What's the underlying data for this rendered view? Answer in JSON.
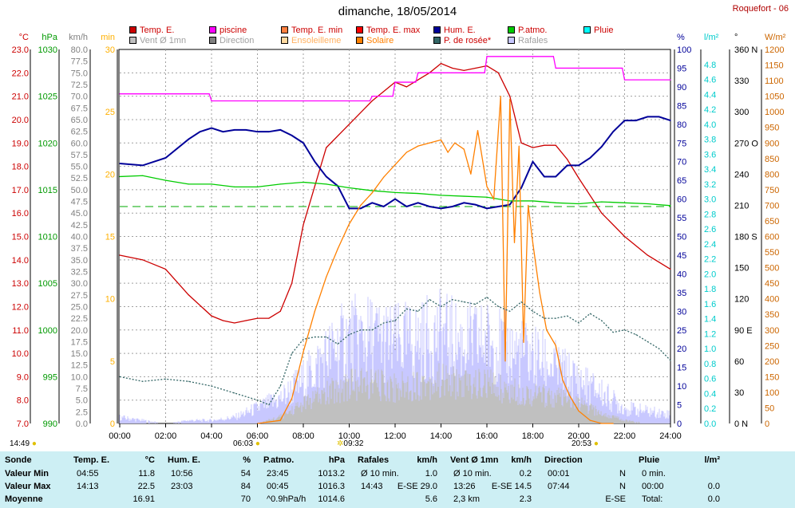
{
  "title": "dimanche, 18/05/2014",
  "station": "Roquefort - 06",
  "legend": [
    {
      "label": "Temp. E.",
      "color": "#cc0000"
    },
    {
      "label": "piscine",
      "color": "#ff00ff"
    },
    {
      "label": "Temp. E. min",
      "color": "#ff8040"
    },
    {
      "label": "Temp. E. max",
      "color": "#ff0000"
    },
    {
      "label": "Hum. E.",
      "color": "#000099"
    },
    {
      "label": "P.atmo.",
      "color": "#00cc00"
    },
    {
      "label": "Pluie",
      "color": "#00ffff"
    },
    {
      "label": "Vent Ø 1mn",
      "color": "#c0c0c0"
    },
    {
      "label": "Direction",
      "color": "#808080"
    },
    {
      "label": "Ensoleilleme",
      "color": "#ffd9a0"
    },
    {
      "label": "Solaire",
      "color": "#ff8000"
    },
    {
      "label": "P. de rosée*",
      "color": "#336666"
    },
    {
      "label": "Rafales",
      "color": "#c8c8ff"
    }
  ],
  "axis_units": {
    "temp": "°C",
    "press": "hPa",
    "wind": "km/h",
    "min": "min",
    "hum": "%",
    "rain": "l/m²",
    "dir": "°",
    "solar": "W/m²"
  },
  "markers": {
    "left_time": "14:49",
    "sunrise": "06:03",
    "sunmax": "09:32",
    "sunset": "20:53"
  },
  "chart_data": {
    "type": "line",
    "x_ticks": [
      "00:00",
      "02:00",
      "04:00",
      "06:00",
      "08:00",
      "10:00",
      "12:00",
      "14:00",
      "16:00",
      "18:00",
      "20:00",
      "22:00",
      "24:00"
    ],
    "axes": {
      "temp": {
        "range": [
          7.0,
          23.0
        ],
        "ticks": [
          "23.0",
          "22.0",
          "21.0",
          "20.0",
          "19.0",
          "18.0",
          "17.0",
          "16.0",
          "15.0",
          "14.0",
          "13.0",
          "12.0",
          "11.0",
          "10.0",
          "9.0",
          "8.0",
          "7.0"
        ],
        "color": "#cc0000"
      },
      "press": {
        "range": [
          990,
          1030
        ],
        "ticks": [
          "1030",
          "1025",
          "1020",
          "1015",
          "1010",
          "1005",
          "1000",
          "995",
          "990"
        ],
        "color": "#009900"
      },
      "wind": {
        "range": [
          0,
          80
        ],
        "ticks": [
          "80.0",
          "77.5",
          "75.0",
          "72.5",
          "70.0",
          "67.5",
          "65.0",
          "62.5",
          "60.0",
          "57.5",
          "55.0",
          "52.5",
          "50.0",
          "47.5",
          "45.0",
          "42.5",
          "40.0",
          "37.5",
          "35.0",
          "32.5",
          "30.0",
          "27.5",
          "25.0",
          "22.5",
          "20.0",
          "17.5",
          "15.0",
          "12.5",
          "10.0",
          "7.5",
          "5.0",
          "2.5",
          "0.0"
        ],
        "color": "#808080"
      },
      "min": {
        "range": [
          0,
          30
        ],
        "ticks": [
          "30",
          "25",
          "20",
          "15",
          "10",
          "5",
          "0"
        ],
        "color": "#ffb000"
      },
      "hum": {
        "range": [
          0,
          100
        ],
        "ticks": [
          "100",
          "95",
          "90",
          "85",
          "80",
          "75",
          "70",
          "65",
          "60",
          "55",
          "50",
          "45",
          "40",
          "35",
          "30",
          "25",
          "20",
          "15",
          "10",
          "5",
          "0"
        ],
        "color": "#000099"
      },
      "rain": {
        "range": [
          0,
          5
        ],
        "ticks": [
          "4.8",
          "4.6",
          "4.4",
          "4.2",
          "4.0",
          "3.8",
          "3.6",
          "3.4",
          "3.2",
          "3.0",
          "2.8",
          "2.6",
          "2.4",
          "2.2",
          "2.0",
          "1.8",
          "1.6",
          "1.4",
          "1.2",
          "1.0",
          "0.8",
          "0.6",
          "0.4",
          "0.2",
          "0.0"
        ],
        "color": "#00cccc"
      },
      "dir": {
        "range": [
          0,
          360
        ],
        "ticks": [
          "360 N",
          "330",
          "300",
          "270 O",
          "240",
          "210",
          "180 S",
          "150",
          "120",
          "90 E",
          "60",
          "30",
          "0 N"
        ],
        "color": "#000000"
      },
      "solar": {
        "range": [
          0,
          1200
        ],
        "ticks": [
          "1200",
          "1150",
          "1100",
          "1050",
          "1000",
          "950",
          "900",
          "850",
          "800",
          "750",
          "700",
          "650",
          "600",
          "550",
          "500",
          "450",
          "400",
          "350",
          "300",
          "250",
          "200",
          "150",
          "100",
          "50",
          "0"
        ],
        "color": "#cc6600"
      }
    },
    "series": [
      {
        "name": "Temp. E.",
        "axis": "temp",
        "color": "#cc0000",
        "x": [
          0,
          1,
          2,
          3,
          4,
          4.5,
          5,
          5.5,
          6,
          6.5,
          7,
          7.5,
          8,
          9,
          10,
          11,
          12,
          12.5,
          13,
          13.5,
          14,
          14.5,
          15,
          15.5,
          16,
          16.5,
          17,
          17.5,
          18,
          18.5,
          19,
          19.5,
          20,
          21,
          22,
          23,
          24
        ],
        "y": [
          14.2,
          14.0,
          13.6,
          12.5,
          11.6,
          11.4,
          11.3,
          11.4,
          11.5,
          11.5,
          11.8,
          13.0,
          15.5,
          18.8,
          19.8,
          20.8,
          21.6,
          21.4,
          21.7,
          22.0,
          22.4,
          22.2,
          22.1,
          22.2,
          22.3,
          22.0,
          21.0,
          19.0,
          18.8,
          18.9,
          18.9,
          18.3,
          17.5,
          16.0,
          15.0,
          14.2,
          13.6
        ]
      },
      {
        "name": "piscine",
        "axis": "temp",
        "color": "#ff00ff",
        "x": [
          0,
          3.9,
          4,
          10.9,
          11,
          11.9,
          12,
          12.9,
          13,
          13.9,
          14,
          15.9,
          16,
          18.9,
          19,
          21.9,
          22,
          24
        ],
        "y": [
          21.1,
          21.1,
          20.8,
          20.8,
          21.0,
          21.0,
          21.6,
          21.6,
          22.0,
          22.0,
          22.0,
          22.0,
          22.7,
          22.7,
          22.2,
          22.2,
          21.7,
          21.7
        ]
      },
      {
        "name": "Hum. E.",
        "axis": "hum",
        "color": "#000099",
        "x": [
          0,
          1,
          2,
          3,
          3.5,
          4,
          4.5,
          5,
          5.5,
          6,
          6.5,
          7,
          7.5,
          8,
          8.5,
          9,
          9.5,
          10,
          10.5,
          11,
          11.5,
          12,
          12.5,
          13,
          13.5,
          14,
          14.5,
          15,
          15.5,
          16,
          16.5,
          17,
          17.5,
          18,
          18.5,
          19,
          19.5,
          20,
          20.5,
          21,
          21.5,
          22,
          22.5,
          23,
          23.5,
          24
        ],
        "y": [
          69.5,
          69,
          71,
          76,
          78,
          79,
          78,
          78.5,
          78.5,
          78,
          78,
          78.5,
          77,
          75,
          70,
          66,
          63.5,
          57.5,
          57.5,
          59,
          58,
          60,
          58,
          59,
          58,
          57.5,
          58,
          59,
          58.5,
          57.5,
          58,
          58.5,
          63,
          70,
          66,
          66,
          69,
          69,
          71,
          74,
          78,
          81,
          81,
          82,
          82,
          81
        ]
      },
      {
        "name": "P.atmo.",
        "axis": "press",
        "color": "#00cc00",
        "x": [
          0,
          1,
          2,
          3,
          4,
          5,
          6,
          7,
          8,
          9,
          10,
          11,
          12,
          13,
          14,
          15,
          16,
          17,
          18,
          19,
          20,
          21,
          22,
          23,
          24
        ],
        "y": [
          1016.4,
          1016.5,
          1016.0,
          1015.6,
          1015.6,
          1015.3,
          1015.3,
          1015.6,
          1015.8,
          1015.6,
          1015.2,
          1014.9,
          1014.7,
          1014.6,
          1014.4,
          1014.3,
          1014.2,
          1013.8,
          1013.8,
          1013.6,
          1013.5,
          1013.7,
          1013.6,
          1013.5,
          1013.3
        ]
      },
      {
        "name": "Solaire",
        "axis": "solar",
        "color": "#ff8000",
        "x": [
          6,
          7,
          7.5,
          8,
          8.5,
          9,
          9.5,
          10,
          10.5,
          11,
          11.5,
          12,
          12.5,
          13,
          13.5,
          14,
          14.3,
          14.6,
          15,
          15.3,
          15.6,
          16,
          16.3,
          16.6,
          16.8,
          17,
          17.2,
          17.4,
          17.6,
          17.8,
          18,
          18.3,
          18.6,
          19,
          19.3,
          19.6,
          20,
          20.5,
          21,
          21.5
        ],
        "y": [
          0,
          10,
          80,
          230,
          360,
          470,
          560,
          640,
          700,
          740,
          790,
          830,
          870,
          890,
          900,
          910,
          870,
          900,
          880,
          800,
          940,
          760,
          720,
          1050,
          200,
          1040,
          580,
          890,
          260,
          700,
          580,
          420,
          300,
          250,
          140,
          90,
          40,
          10,
          0,
          0
        ]
      },
      {
        "name": "P. de rosée*",
        "axis": "temp",
        "color": "#336666",
        "x": [
          0,
          1,
          2,
          3,
          4,
          5,
          6,
          6.5,
          7,
          7.5,
          8,
          8.5,
          9,
          9.5,
          10,
          10.5,
          11,
          11.5,
          12,
          12.5,
          13,
          13.5,
          14,
          14.5,
          15,
          15.5,
          16,
          16.5,
          17,
          17.5,
          18,
          18.5,
          19,
          19.5,
          20,
          20.5,
          21,
          21.5,
          22,
          22.5,
          23,
          23.5,
          24
        ],
        "y": [
          9.0,
          8.8,
          8.9,
          8.8,
          8.6,
          8.3,
          8.0,
          7.8,
          8.6,
          10.0,
          10.6,
          10.7,
          10.7,
          10.4,
          10.8,
          11.0,
          11.0,
          11.3,
          11.4,
          11.9,
          11.8,
          12.3,
          12.0,
          12.3,
          12.2,
          12.1,
          12.4,
          12.0,
          11.8,
          12.2,
          11.8,
          11.5,
          11.5,
          11.6,
          11.3,
          11.7,
          11.4,
          10.9,
          11.0,
          10.8,
          10.5,
          10.2,
          9.7
        ]
      },
      {
        "name": "Rafales",
        "axis": "wind",
        "color": "#c8c8ff",
        "x": [
          0,
          1,
          2,
          3,
          4,
          5,
          6,
          7,
          8,
          9,
          10,
          11,
          12,
          13,
          14,
          15,
          16,
          17,
          18,
          19,
          20,
          21,
          22,
          23,
          24
        ],
        "y": [
          2,
          1,
          0,
          1,
          1,
          2,
          5,
          8,
          14,
          22,
          28,
          28,
          26,
          27,
          29,
          26,
          27,
          24,
          22,
          18,
          14,
          10,
          5,
          4,
          3
        ]
      },
      {
        "name": "Vent Ø 1mn",
        "axis": "wind",
        "color": "#c0c0c0",
        "x": [
          0,
          2,
          4,
          6,
          7,
          8,
          9,
          10,
          11,
          12,
          13,
          14,
          15,
          16,
          17,
          18,
          19,
          20,
          21,
          22,
          23,
          24
        ],
        "y": [
          0,
          0,
          0,
          0,
          2,
          6,
          9,
          12,
          12,
          11,
          12,
          13,
          12,
          12,
          10,
          9,
          8,
          6,
          3,
          1,
          0,
          0
        ]
      }
    ],
    "sunshine_min": {
      "axis": "min",
      "color": "#ffd9a0",
      "x": [
        7.8,
        17.0,
        17.2,
        17.5,
        17.7,
        19.8
      ],
      "y": [
        2,
        2,
        2,
        2,
        2,
        2
      ]
    }
  },
  "table": {
    "headers": [
      {
        "label": "Sonde"
      },
      {
        "label": "Temp. E.",
        "unit": "°C"
      },
      {
        "label": "Hum. E.",
        "unit": "%"
      },
      {
        "label": "P.atmo.",
        "unit": "hPa"
      },
      {
        "label": "Rafales",
        "unit": "km/h"
      },
      {
        "label": "Vent Ø 1mn",
        "unit": "km/h"
      },
      {
        "label": "Direction"
      },
      {
        "label": "Pluie",
        "unit": "l/m²"
      }
    ],
    "rows": [
      {
        "label": "Valeur Min",
        "cells": [
          [
            "04:55",
            "11.8"
          ],
          [
            "10:56",
            "54"
          ],
          [
            "23:45",
            "1013.2"
          ],
          [
            "Ø 10 min.",
            "1.0"
          ],
          [
            "Ø 10 min.",
            "0.2"
          ],
          [
            "00:01",
            "N"
          ],
          [
            "0 min.",
            ""
          ]
        ]
      },
      {
        "label": "Valeur Max",
        "cells": [
          [
            "14:13",
            "22.5"
          ],
          [
            "23:03",
            "84"
          ],
          [
            "00:45",
            "1016.3"
          ],
          [
            "14:43",
            "E-SE 29.0"
          ],
          [
            "13:26",
            "E-SE 14.5"
          ],
          [
            "07:44",
            "N"
          ],
          [
            "00:00",
            "0.0"
          ]
        ]
      },
      {
        "label": "Moyenne",
        "cells": [
          [
            "",
            "16.91"
          ],
          [
            "",
            "70"
          ],
          [
            "^0.9hPa/h",
            "1014.6"
          ],
          [
            "",
            "5.6"
          ],
          [
            "2,3 km",
            "2.3"
          ],
          [
            "",
            "E-SE"
          ],
          [
            "Total:",
            "0.0"
          ]
        ]
      }
    ]
  }
}
